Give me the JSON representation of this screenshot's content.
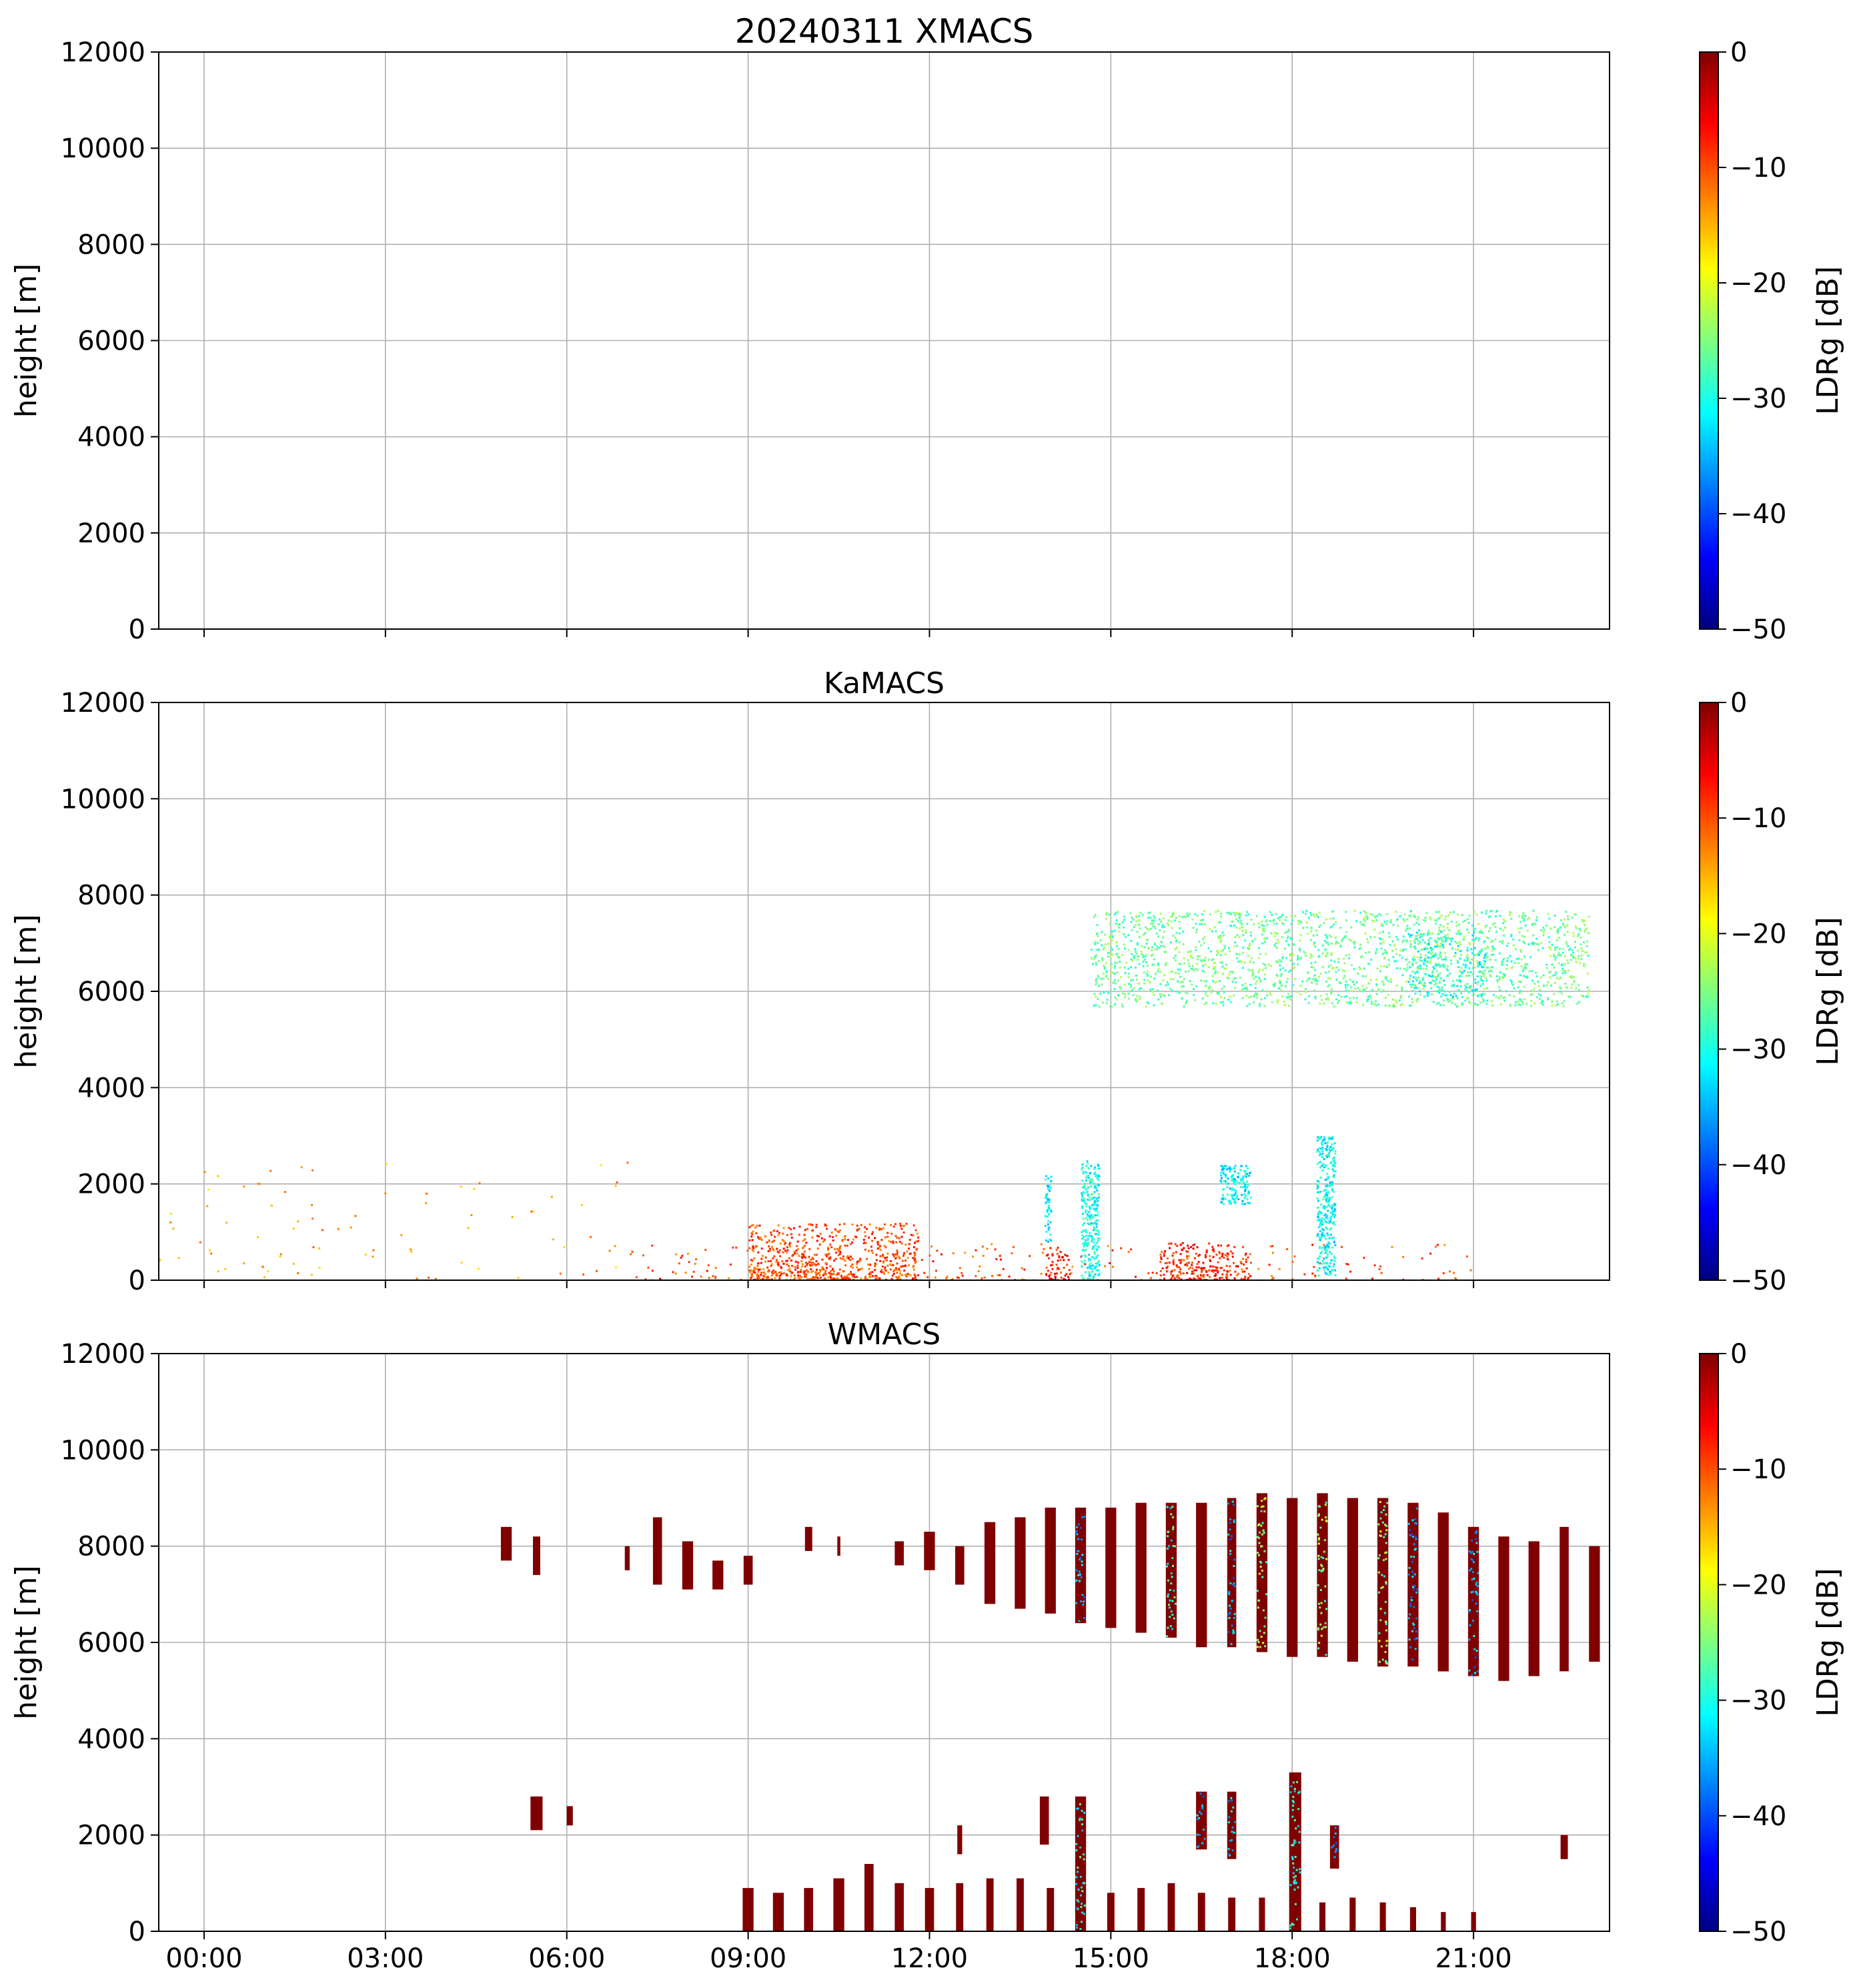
{
  "figure": {
    "title_date": "20240311",
    "colormap_stops": [
      "#00007f",
      "#0000ff",
      "#007fff",
      "#00ffff",
      "#7fff7f",
      "#ffff00",
      "#ff7f00",
      "#ff0000",
      "#7f0000"
    ]
  },
  "chart_data": [
    {
      "type": "heatmap",
      "title": "20240311 XMACS",
      "xlabel": "",
      "ylabel": "height [m]",
      "ylim": [
        0,
        12000
      ],
      "xlim_hours": [
        -0.75,
        23.25
      ],
      "yticks": [
        0,
        2000,
        4000,
        6000,
        8000,
        10000,
        12000
      ],
      "xticks_hours": [
        0,
        3,
        6,
        9,
        12,
        15,
        18,
        21
      ],
      "xtick_labels": [],
      "grid": true,
      "colorbar": {
        "label": "LDRg [dB]",
        "range": [
          -50,
          0
        ],
        "ticks": [
          0,
          -10,
          -20,
          -30,
          -40,
          -50
        ],
        "tick_labels": [
          "0",
          "−10",
          "−20",
          "−30",
          "−40",
          "−50"
        ]
      },
      "regions": []
    },
    {
      "type": "heatmap",
      "title": "KaMACS",
      "xlabel": "",
      "ylabel": "height [m]",
      "ylim": [
        0,
        12000
      ],
      "xlim_hours": [
        -0.75,
        23.25
      ],
      "yticks": [
        0,
        2000,
        4000,
        6000,
        8000,
        10000,
        12000
      ],
      "xticks_hours": [
        0,
        3,
        6,
        9,
        12,
        15,
        18,
        21
      ],
      "xtick_labels": [],
      "grid": true,
      "colorbar": {
        "label": "LDRg [dB]",
        "range": [
          -50,
          0
        ],
        "ticks": [
          0,
          -10,
          -20,
          -30,
          -40,
          -50
        ],
        "tick_labels": [
          "0",
          "−10",
          "−20",
          "−30",
          "−40",
          "−50"
        ]
      },
      "regions": [
        {
          "t0": 14.7,
          "t1": 22.9,
          "h0": 5700,
          "h1": 7700,
          "ldr": -26,
          "density": "cloud"
        },
        {
          "t0": 14.6,
          "t1": 15.6,
          "h0": 6500,
          "h1": 6900,
          "ldr": -27,
          "density": "sparse"
        },
        {
          "t0": 19.9,
          "t1": 21.2,
          "h0": 5900,
          "h1": 7300,
          "ldr": -30,
          "density": "cloud"
        },
        {
          "t0": 7.0,
          "t1": 21.0,
          "h0": 0,
          "h1": 800,
          "ldr": -10,
          "density": "speckle"
        },
        {
          "t0": 9.0,
          "t1": 11.8,
          "h0": 0,
          "h1": 1200,
          "ldr": -10,
          "density": "dense"
        },
        {
          "t0": 15.8,
          "t1": 17.3,
          "h0": 0,
          "h1": 800,
          "ldr": -8,
          "density": "dense"
        },
        {
          "t0": 13.9,
          "t1": 14.3,
          "h0": 0,
          "h1": 700,
          "ldr": -7,
          "density": "dense"
        },
        {
          "t0": -0.75,
          "t1": 7.0,
          "h0": 0,
          "h1": 2500,
          "ldr": -14,
          "density": "isolated"
        },
        {
          "t0": 14.5,
          "t1": 14.8,
          "h0": 0,
          "h1": 2500,
          "ldr": -30,
          "density": "plume"
        },
        {
          "t0": 13.9,
          "t1": 14.0,
          "h0": 800,
          "h1": 2200,
          "ldr": -32,
          "density": "plume"
        },
        {
          "t0": 18.4,
          "t1": 18.7,
          "h0": 100,
          "h1": 3000,
          "ldr": -31,
          "density": "plume"
        },
        {
          "t0": 16.8,
          "t1": 17.3,
          "h0": 1600,
          "h1": 2400,
          "ldr": -32,
          "density": "plume"
        }
      ]
    },
    {
      "type": "heatmap",
      "title": "WMACS",
      "xlabel": "",
      "ylabel": "height [m]",
      "ylim": [
        0,
        12000
      ],
      "xlim_hours": [
        -0.75,
        23.25
      ],
      "yticks": [
        0,
        2000,
        4000,
        6000,
        8000,
        10000,
        12000
      ],
      "xticks_hours": [
        0,
        3,
        6,
        9,
        12,
        15,
        18,
        21
      ],
      "xtick_labels": [
        "00:00",
        "03:00",
        "06:00",
        "09:00",
        "12:00",
        "15:00",
        "18:00",
        "21:00"
      ],
      "grid": true,
      "colorbar": {
        "label": "LDRg [dB]",
        "range": [
          -50,
          0
        ],
        "ticks": [
          0,
          -10,
          -20,
          -30,
          -40,
          -50
        ],
        "tick_labels": [
          "0",
          "−10",
          "−20",
          "−30",
          "−40",
          "−50"
        ]
      },
      "stripes": [
        {
          "t": 5.0,
          "w": 0.18,
          "h0": 7700,
          "h1": 8400
        },
        {
          "t": 5.5,
          "w": 0.12,
          "h0": 7400,
          "h1": 8200
        },
        {
          "t": 7.0,
          "w": 0.08,
          "h0": 7500,
          "h1": 8000
        },
        {
          "t": 7.5,
          "w": 0.15,
          "h0": 7200,
          "h1": 8600
        },
        {
          "t": 8.0,
          "w": 0.18,
          "h0": 7100,
          "h1": 8100
        },
        {
          "t": 8.5,
          "w": 0.18,
          "h0": 7100,
          "h1": 7700
        },
        {
          "t": 9.0,
          "w": 0.15,
          "h0": 7200,
          "h1": 7800
        },
        {
          "t": 10.0,
          "w": 0.12,
          "h0": 7900,
          "h1": 8400
        },
        {
          "t": 10.5,
          "w": 0.05,
          "h0": 7800,
          "h1": 8200
        },
        {
          "t": 11.5,
          "w": 0.15,
          "h0": 7600,
          "h1": 8100
        },
        {
          "t": 12.0,
          "w": 0.18,
          "h0": 7500,
          "h1": 8300
        },
        {
          "t": 12.5,
          "w": 0.15,
          "h0": 7200,
          "h1": 8000
        },
        {
          "t": 13.0,
          "w": 0.18,
          "h0": 6800,
          "h1": 8500
        },
        {
          "t": 13.5,
          "w": 0.18,
          "h0": 6700,
          "h1": 8600
        },
        {
          "t": 14.0,
          "w": 0.18,
          "h0": 6600,
          "h1": 8800
        },
        {
          "t": 14.5,
          "w": 0.18,
          "h0": 6400,
          "h1": 8800,
          "speckle": -35
        },
        {
          "t": 15.0,
          "w": 0.18,
          "h0": 6300,
          "h1": 8800
        },
        {
          "t": 15.5,
          "w": 0.18,
          "h0": 6200,
          "h1": 8900
        },
        {
          "t": 16.0,
          "w": 0.18,
          "h0": 6100,
          "h1": 8900,
          "speckle": -30
        },
        {
          "t": 16.5,
          "w": 0.18,
          "h0": 5900,
          "h1": 8900
        },
        {
          "t": 17.0,
          "w": 0.15,
          "h0": 5900,
          "h1": 9000,
          "speckle": -35
        },
        {
          "t": 17.5,
          "w": 0.18,
          "h0": 5800,
          "h1": 9100,
          "speckle": -25
        },
        {
          "t": 18.0,
          "w": 0.18,
          "h0": 5700,
          "h1": 9000
        },
        {
          "t": 18.5,
          "w": 0.18,
          "h0": 5700,
          "h1": 9100,
          "speckle": -25
        },
        {
          "t": 19.0,
          "w": 0.18,
          "h0": 5600,
          "h1": 9000
        },
        {
          "t": 19.5,
          "w": 0.18,
          "h0": 5500,
          "h1": 9000,
          "speckle": -25
        },
        {
          "t": 20.0,
          "w": 0.18,
          "h0": 5500,
          "h1": 8900,
          "speckle": -35
        },
        {
          "t": 20.5,
          "w": 0.18,
          "h0": 5400,
          "h1": 8700
        },
        {
          "t": 21.0,
          "w": 0.18,
          "h0": 5300,
          "h1": 8400,
          "speckle": -35
        },
        {
          "t": 21.5,
          "w": 0.18,
          "h0": 5200,
          "h1": 8200
        },
        {
          "t": 22.0,
          "w": 0.18,
          "h0": 5300,
          "h1": 8100
        },
        {
          "t": 22.5,
          "w": 0.15,
          "h0": 5400,
          "h1": 8400
        },
        {
          "t": 23.0,
          "w": 0.18,
          "h0": 5600,
          "h1": 8000
        },
        {
          "t": 5.5,
          "w": 0.2,
          "h0": 2100,
          "h1": 2800
        },
        {
          "t": 6.05,
          "w": 0.1,
          "h0": 2200,
          "h1": 2600
        },
        {
          "t": 12.5,
          "w": 0.08,
          "h0": 1600,
          "h1": 2200
        },
        {
          "t": 13.9,
          "w": 0.15,
          "h0": 1800,
          "h1": 2800
        },
        {
          "t": 14.5,
          "w": 0.18,
          "h0": 0,
          "h1": 2800,
          "speckle": -30
        },
        {
          "t": 16.5,
          "w": 0.18,
          "h0": 1700,
          "h1": 2900,
          "speckle": -35
        },
        {
          "t": 17.0,
          "w": 0.15,
          "h0": 1500,
          "h1": 2900,
          "speckle": -35
        },
        {
          "t": 18.05,
          "w": 0.2,
          "h0": 0,
          "h1": 3300,
          "speckle": -30
        },
        {
          "t": 18.7,
          "w": 0.15,
          "h0": 1300,
          "h1": 2200,
          "speckle": -35
        },
        {
          "t": 22.5,
          "w": 0.12,
          "h0": 1500,
          "h1": 2000
        },
        {
          "t": 9.0,
          "w": 0.18,
          "h0": 0,
          "h1": 900
        },
        {
          "t": 9.5,
          "w": 0.18,
          "h0": 0,
          "h1": 800
        },
        {
          "t": 10.0,
          "w": 0.15,
          "h0": 0,
          "h1": 900
        },
        {
          "t": 10.5,
          "w": 0.18,
          "h0": 0,
          "h1": 1100
        },
        {
          "t": 11.0,
          "w": 0.15,
          "h0": 0,
          "h1": 1400
        },
        {
          "t": 11.5,
          "w": 0.15,
          "h0": 0,
          "h1": 1000
        },
        {
          "t": 12.0,
          "w": 0.15,
          "h0": 0,
          "h1": 900
        },
        {
          "t": 12.5,
          "w": 0.12,
          "h0": 0,
          "h1": 1000
        },
        {
          "t": 13.0,
          "w": 0.12,
          "h0": 0,
          "h1": 1100
        },
        {
          "t": 13.5,
          "w": 0.12,
          "h0": 0,
          "h1": 1100
        },
        {
          "t": 14.0,
          "w": 0.12,
          "h0": 0,
          "h1": 900
        },
        {
          "t": 15.0,
          "w": 0.12,
          "h0": 0,
          "h1": 800
        },
        {
          "t": 15.5,
          "w": 0.12,
          "h0": 0,
          "h1": 900
        },
        {
          "t": 16.0,
          "w": 0.12,
          "h0": 0,
          "h1": 1000
        },
        {
          "t": 16.5,
          "w": 0.12,
          "h0": 0,
          "h1": 800
        },
        {
          "t": 17.0,
          "w": 0.12,
          "h0": 0,
          "h1": 700
        },
        {
          "t": 17.5,
          "w": 0.1,
          "h0": 0,
          "h1": 700
        },
        {
          "t": 18.5,
          "w": 0.1,
          "h0": 0,
          "h1": 600
        },
        {
          "t": 19.0,
          "w": 0.1,
          "h0": 0,
          "h1": 700
        },
        {
          "t": 19.5,
          "w": 0.1,
          "h0": 0,
          "h1": 600
        },
        {
          "t": 20.0,
          "w": 0.1,
          "h0": 0,
          "h1": 500
        },
        {
          "t": 20.5,
          "w": 0.08,
          "h0": 0,
          "h1": 400
        },
        {
          "t": 21.0,
          "w": 0.08,
          "h0": 0,
          "h1": 400
        }
      ]
    }
  ]
}
